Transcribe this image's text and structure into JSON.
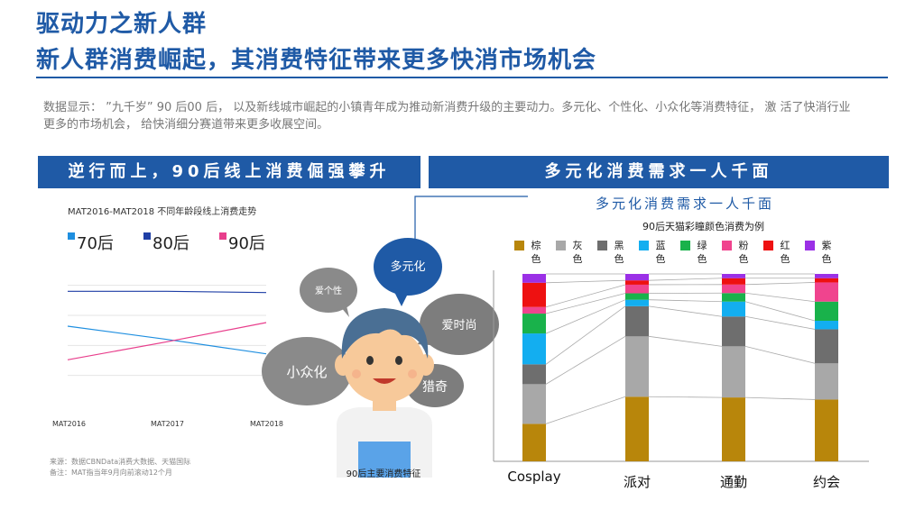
{
  "header": {
    "title_line1": "驱动力之新人群",
    "title_line2": "新人群消费崛起，其消费特征带来更多快消市场机会",
    "intro": "数据显示：  ”九千岁” 90 后00 后， 以及新线城市崛起的小镇青年成为推动新消费升级的主要动力。多元化、个性化、小众化等消费特征， 激 活了快消行业更多的市场机会， 给快消细分赛道带来更多收展空间。"
  },
  "banners": {
    "left": "逆行而上，90后线上消费倔强攀升",
    "right": "多元化消费需求一人千面"
  },
  "left_panel": {
    "chart_title": "MAT2016-MAT2018 不同年龄段线上消费走势",
    "source_line1": "来源：数据CBNData消费大数据、天猫国际",
    "source_line2": "备注：MAT指当年9月向前滚动12个月"
  },
  "center": {
    "bubbles": [
      "多元化",
      "爱个性",
      "爱时尚",
      "小众化",
      "猎奇"
    ],
    "caption": "90后主要消费特征"
  },
  "right_panel": {
    "title": "多元化消费需求一人千面",
    "subtitle": "90后天猫彩瞳颜色消费为例"
  },
  "colors": {
    "brand": "#1f5aa6",
    "s70": "#1f8fe0",
    "s80": "#1f3fa6",
    "s90": "#e83e8c"
  },
  "chart_data": [
    {
      "type": "line",
      "title": "MAT2016-MAT2018 不同年龄段线上消费走势",
      "categories": [
        "MAT2016",
        "MAT2017",
        "MAT2018"
      ],
      "series": [
        {
          "name": "70后",
          "values": [
            0.66,
            0.55,
            0.43
          ],
          "color": "#1f8fe0"
        },
        {
          "name": "80后",
          "values": [
            0.95,
            0.95,
            0.94
          ],
          "color": "#1f3fa6"
        },
        {
          "name": "90后",
          "values": [
            0.38,
            0.53,
            0.69
          ],
          "color": "#e83e8c"
        }
      ],
      "ylim": [
        0,
        1.2
      ],
      "grid": true,
      "legend": "top-left"
    },
    {
      "type": "bar",
      "stacked": true,
      "subtitle": "90后天猫彩瞳颜色消费为例",
      "categories": [
        "Cosplay",
        "派对",
        "通勤",
        "约会"
      ],
      "series": [
        {
          "name": "棕色",
          "color": "#b8860b",
          "values": [
            17,
            30,
            30,
            29
          ]
        },
        {
          "name": "灰色",
          "color": "#a8a8a8",
          "values": [
            18,
            28,
            24,
            17
          ]
        },
        {
          "name": "黑色",
          "color": "#6e6e6e",
          "values": [
            9,
            14,
            14,
            16
          ]
        },
        {
          "name": "蓝色",
          "color": "#13aef0",
          "values": [
            14,
            3,
            7,
            4
          ]
        },
        {
          "name": "绿色",
          "color": "#19b24b",
          "values": [
            9,
            3,
            4,
            9
          ]
        },
        {
          "name": "粉色",
          "color": "#f0448e",
          "values": [
            3,
            4,
            4,
            9
          ]
        },
        {
          "name": "红色",
          "color": "#ee1111",
          "values": [
            11,
            2,
            3,
            2
          ]
        },
        {
          "name": "紫色",
          "color": "#9b30e6",
          "values": [
            4,
            3,
            2,
            2
          ]
        }
      ],
      "legend": "top"
    }
  ]
}
